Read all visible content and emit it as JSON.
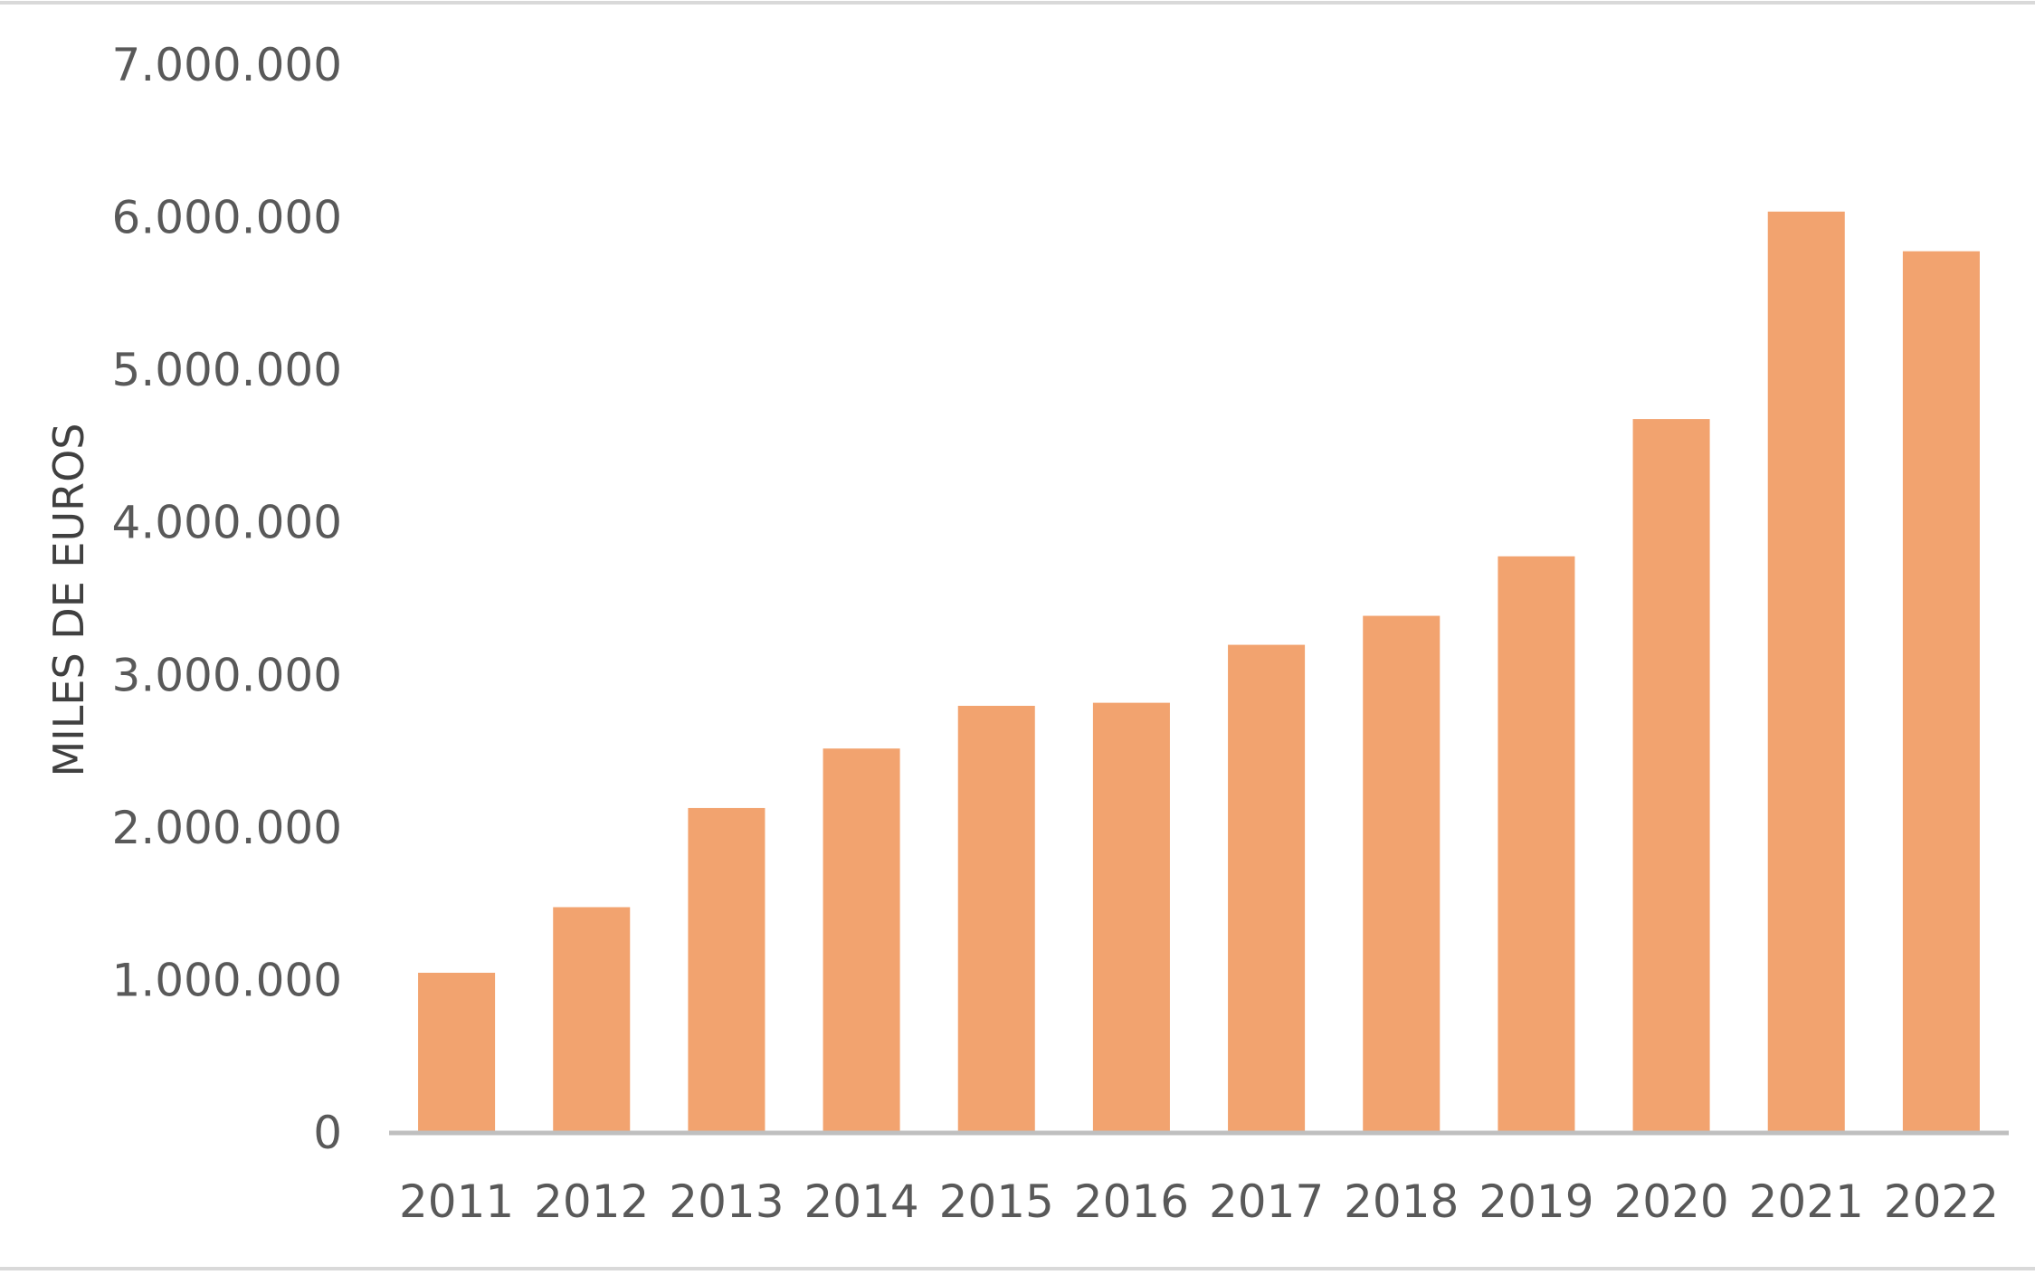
{
  "chart_data": {
    "type": "bar",
    "title": "",
    "xlabel": "",
    "ylabel": "MILES DE EUROS",
    "categories": [
      "2011",
      "2012",
      "2013",
      "2014",
      "2015",
      "2016",
      "2017",
      "2018",
      "2019",
      "2020",
      "2021",
      "2022"
    ],
    "values": [
      1050000,
      1480000,
      2130000,
      2520000,
      2800000,
      2820000,
      3200000,
      3390000,
      3780000,
      4680000,
      6040000,
      5780000
    ],
    "ylim": [
      0,
      7000000
    ],
    "yticks": [
      0,
      1000000,
      2000000,
      3000000,
      4000000,
      5000000,
      6000000,
      7000000
    ],
    "ytick_labels": [
      "0",
      "1.000.000",
      "2.000.000",
      "3.000.000",
      "4.000.000",
      "5.000.000",
      "6.000.000",
      "7.000.000"
    ],
    "grid": false,
    "legend": "none",
    "bar_color": "#F2A36F",
    "axis_color": "#BFBFBF"
  }
}
